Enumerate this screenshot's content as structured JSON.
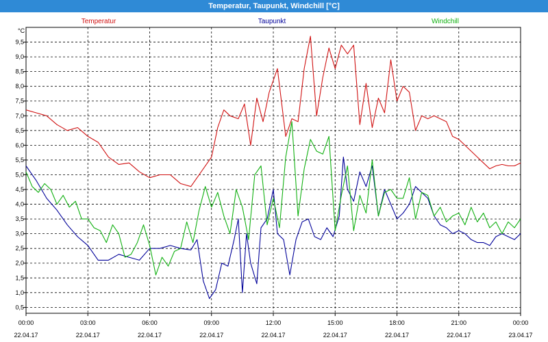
{
  "window": {
    "title": "Temperatur, Taupunkt, Windchill [°C]"
  },
  "colors": {
    "temperature": "#d01010",
    "dewpoint": "#000099",
    "windchill": "#10b010",
    "grid": "#000000"
  },
  "chart_data": {
    "type": "line",
    "title": "Temperatur, Taupunkt, Windchill [°C]",
    "ylabel": "°C",
    "ylim": [
      0.3,
      10.0
    ],
    "xlim_hours": [
      0,
      24
    ],
    "y_ticks": [
      "0,5",
      "1,0",
      "1,5",
      "2,0",
      "2,5",
      "3,0",
      "3,5",
      "4,0",
      "4,5",
      "5,0",
      "5,5",
      "6,0",
      "6,5",
      "7,0",
      "7,5",
      "8,0",
      "8,5",
      "9,0",
      "9,5"
    ],
    "x_ticks": [
      {
        "time": "00:00",
        "date": "22.04.17"
      },
      {
        "time": "03:00",
        "date": "22.04.17"
      },
      {
        "time": "06:00",
        "date": "22.04.17"
      },
      {
        "time": "09:00",
        "date": "22.04.17"
      },
      {
        "time": "12:00",
        "date": "22.04.17"
      },
      {
        "time": "15:00",
        "date": "22.04.17"
      },
      {
        "time": "18:00",
        "date": "22.04.17"
      },
      {
        "time": "21:00",
        "date": "22.04.17"
      },
      {
        "time": "00:00",
        "date": "23.04.17"
      }
    ],
    "grid": true,
    "legend_placement": "top",
    "series": [
      {
        "name": "Temperatur",
        "color": "#d01010",
        "x": [
          0,
          0.5,
          1.0,
          1.5,
          2.0,
          2.5,
          3.0,
          3.5,
          4.0,
          4.5,
          5.0,
          5.5,
          6.0,
          6.5,
          7.0,
          7.5,
          8.0,
          8.5,
          9.0,
          9.3,
          9.6,
          9.9,
          10.3,
          10.6,
          10.9,
          11.2,
          11.5,
          11.8,
          12.2,
          12.6,
          12.9,
          13.2,
          13.5,
          13.8,
          14.1,
          14.4,
          14.7,
          15.0,
          15.3,
          15.6,
          15.9,
          16.2,
          16.5,
          16.8,
          17.1,
          17.4,
          17.7,
          18.0,
          18.3,
          18.6,
          18.9,
          19.2,
          19.5,
          19.8,
          20.1,
          20.4,
          20.7,
          21.0,
          21.3,
          21.6,
          21.9,
          22.2,
          22.5,
          22.8,
          23.1,
          23.4,
          23.7,
          24.0
        ],
        "values": [
          7.2,
          7.1,
          7.0,
          6.7,
          6.5,
          6.6,
          6.3,
          6.1,
          5.6,
          5.35,
          5.4,
          5.1,
          4.9,
          5.0,
          5.0,
          4.7,
          4.6,
          5.1,
          5.6,
          6.6,
          7.2,
          7.0,
          6.9,
          7.4,
          6.0,
          7.6,
          6.8,
          7.8,
          8.6,
          6.3,
          6.9,
          6.8,
          8.6,
          9.7,
          7.0,
          8.3,
          9.3,
          8.6,
          9.4,
          9.1,
          9.4,
          6.7,
          8.1,
          6.6,
          7.6,
          7.1,
          8.9,
          7.5,
          8.0,
          7.8,
          6.5,
          7.0,
          6.9,
          7.0,
          6.9,
          6.8,
          6.3,
          6.2,
          6.0,
          5.8,
          5.6,
          5.4,
          5.2,
          5.3,
          5.35,
          5.3,
          5.3,
          5.4
        ]
      },
      {
        "name": "Taupunkt",
        "color": "#000099",
        "x": [
          0,
          0.5,
          1.0,
          1.5,
          2.0,
          2.5,
          3.0,
          3.5,
          4.0,
          4.5,
          5.0,
          5.5,
          6.0,
          6.5,
          7.0,
          7.5,
          8.0,
          8.3,
          8.6,
          8.9,
          9.2,
          9.5,
          9.8,
          10.1,
          10.3,
          10.5,
          10.7,
          10.9,
          11.2,
          11.4,
          11.7,
          12.0,
          12.2,
          12.5,
          12.8,
          13.1,
          13.4,
          13.7,
          14.0,
          14.3,
          14.6,
          14.9,
          15.2,
          15.4,
          15.6,
          15.9,
          16.2,
          16.5,
          16.8,
          17.1,
          17.4,
          17.7,
          18.0,
          18.3,
          18.6,
          18.9,
          19.2,
          19.5,
          19.8,
          20.1,
          20.4,
          20.7,
          21.0,
          21.3,
          21.6,
          21.9,
          22.2,
          22.5,
          22.8,
          23.1,
          23.4,
          23.7,
          24.0
        ],
        "values": [
          5.3,
          4.8,
          4.2,
          3.8,
          3.3,
          2.9,
          2.6,
          2.1,
          2.1,
          2.3,
          2.2,
          2.1,
          2.5,
          2.5,
          2.6,
          2.5,
          2.45,
          2.8,
          1.4,
          0.8,
          1.1,
          2.0,
          1.9,
          2.8,
          3.5,
          1.0,
          3.0,
          2.0,
          1.3,
          3.2,
          3.5,
          4.5,
          3.0,
          2.8,
          1.6,
          2.8,
          3.4,
          3.5,
          2.9,
          2.8,
          3.2,
          2.9,
          3.6,
          5.6,
          4.5,
          4.1,
          5.1,
          4.6,
          5.3,
          3.6,
          4.5,
          4.0,
          3.5,
          3.7,
          4.0,
          4.6,
          4.4,
          4.2,
          3.6,
          3.3,
          3.2,
          3.0,
          3.1,
          3.0,
          2.8,
          2.7,
          2.7,
          2.6,
          2.9,
          3.0,
          2.9,
          2.8,
          3.0
        ]
      },
      {
        "name": "Windchill",
        "color": "#10b010",
        "x": [
          0,
          0.3,
          0.6,
          0.9,
          1.2,
          1.5,
          1.8,
          2.1,
          2.4,
          2.7,
          3.0,
          3.3,
          3.6,
          3.9,
          4.2,
          4.5,
          4.8,
          5.1,
          5.4,
          5.7,
          6.0,
          6.3,
          6.6,
          6.9,
          7.2,
          7.5,
          7.8,
          8.1,
          8.4,
          8.7,
          9.0,
          9.3,
          9.6,
          9.9,
          10.2,
          10.5,
          10.8,
          11.1,
          11.4,
          11.7,
          12.0,
          12.3,
          12.6,
          12.9,
          13.2,
          13.5,
          13.8,
          14.1,
          14.4,
          14.7,
          15.0,
          15.3,
          15.6,
          15.9,
          16.2,
          16.5,
          16.8,
          17.1,
          17.4,
          17.7,
          18.0,
          18.3,
          18.6,
          18.9,
          19.2,
          19.5,
          19.8,
          20.1,
          20.4,
          20.7,
          21.0,
          21.3,
          21.6,
          21.9,
          22.2,
          22.5,
          22.8,
          23.1,
          23.4,
          23.7,
          24.0
        ],
        "values": [
          5.1,
          4.6,
          4.4,
          4.7,
          4.5,
          4.0,
          4.3,
          3.9,
          4.1,
          3.5,
          3.5,
          3.2,
          3.1,
          2.7,
          3.3,
          3.0,
          2.2,
          2.3,
          2.7,
          3.3,
          2.6,
          1.6,
          2.2,
          1.9,
          2.4,
          2.5,
          3.4,
          2.7,
          3.8,
          4.6,
          3.9,
          4.4,
          3.6,
          3.0,
          4.5,
          3.9,
          2.8,
          5.0,
          5.3,
          3.3,
          4.2,
          3.2,
          5.6,
          6.8,
          3.6,
          5.2,
          6.2,
          5.8,
          5.7,
          6.3,
          3.1,
          4.3,
          5.3,
          3.1,
          4.3,
          3.7,
          5.5,
          3.6,
          4.4,
          4.5,
          4.2,
          4.2,
          4.9,
          3.5,
          4.4,
          4.3,
          3.6,
          3.9,
          3.4,
          3.6,
          3.7,
          3.3,
          3.9,
          3.4,
          3.7,
          3.2,
          3.4,
          3.0,
          3.4,
          3.2,
          3.5
        ]
      }
    ]
  }
}
